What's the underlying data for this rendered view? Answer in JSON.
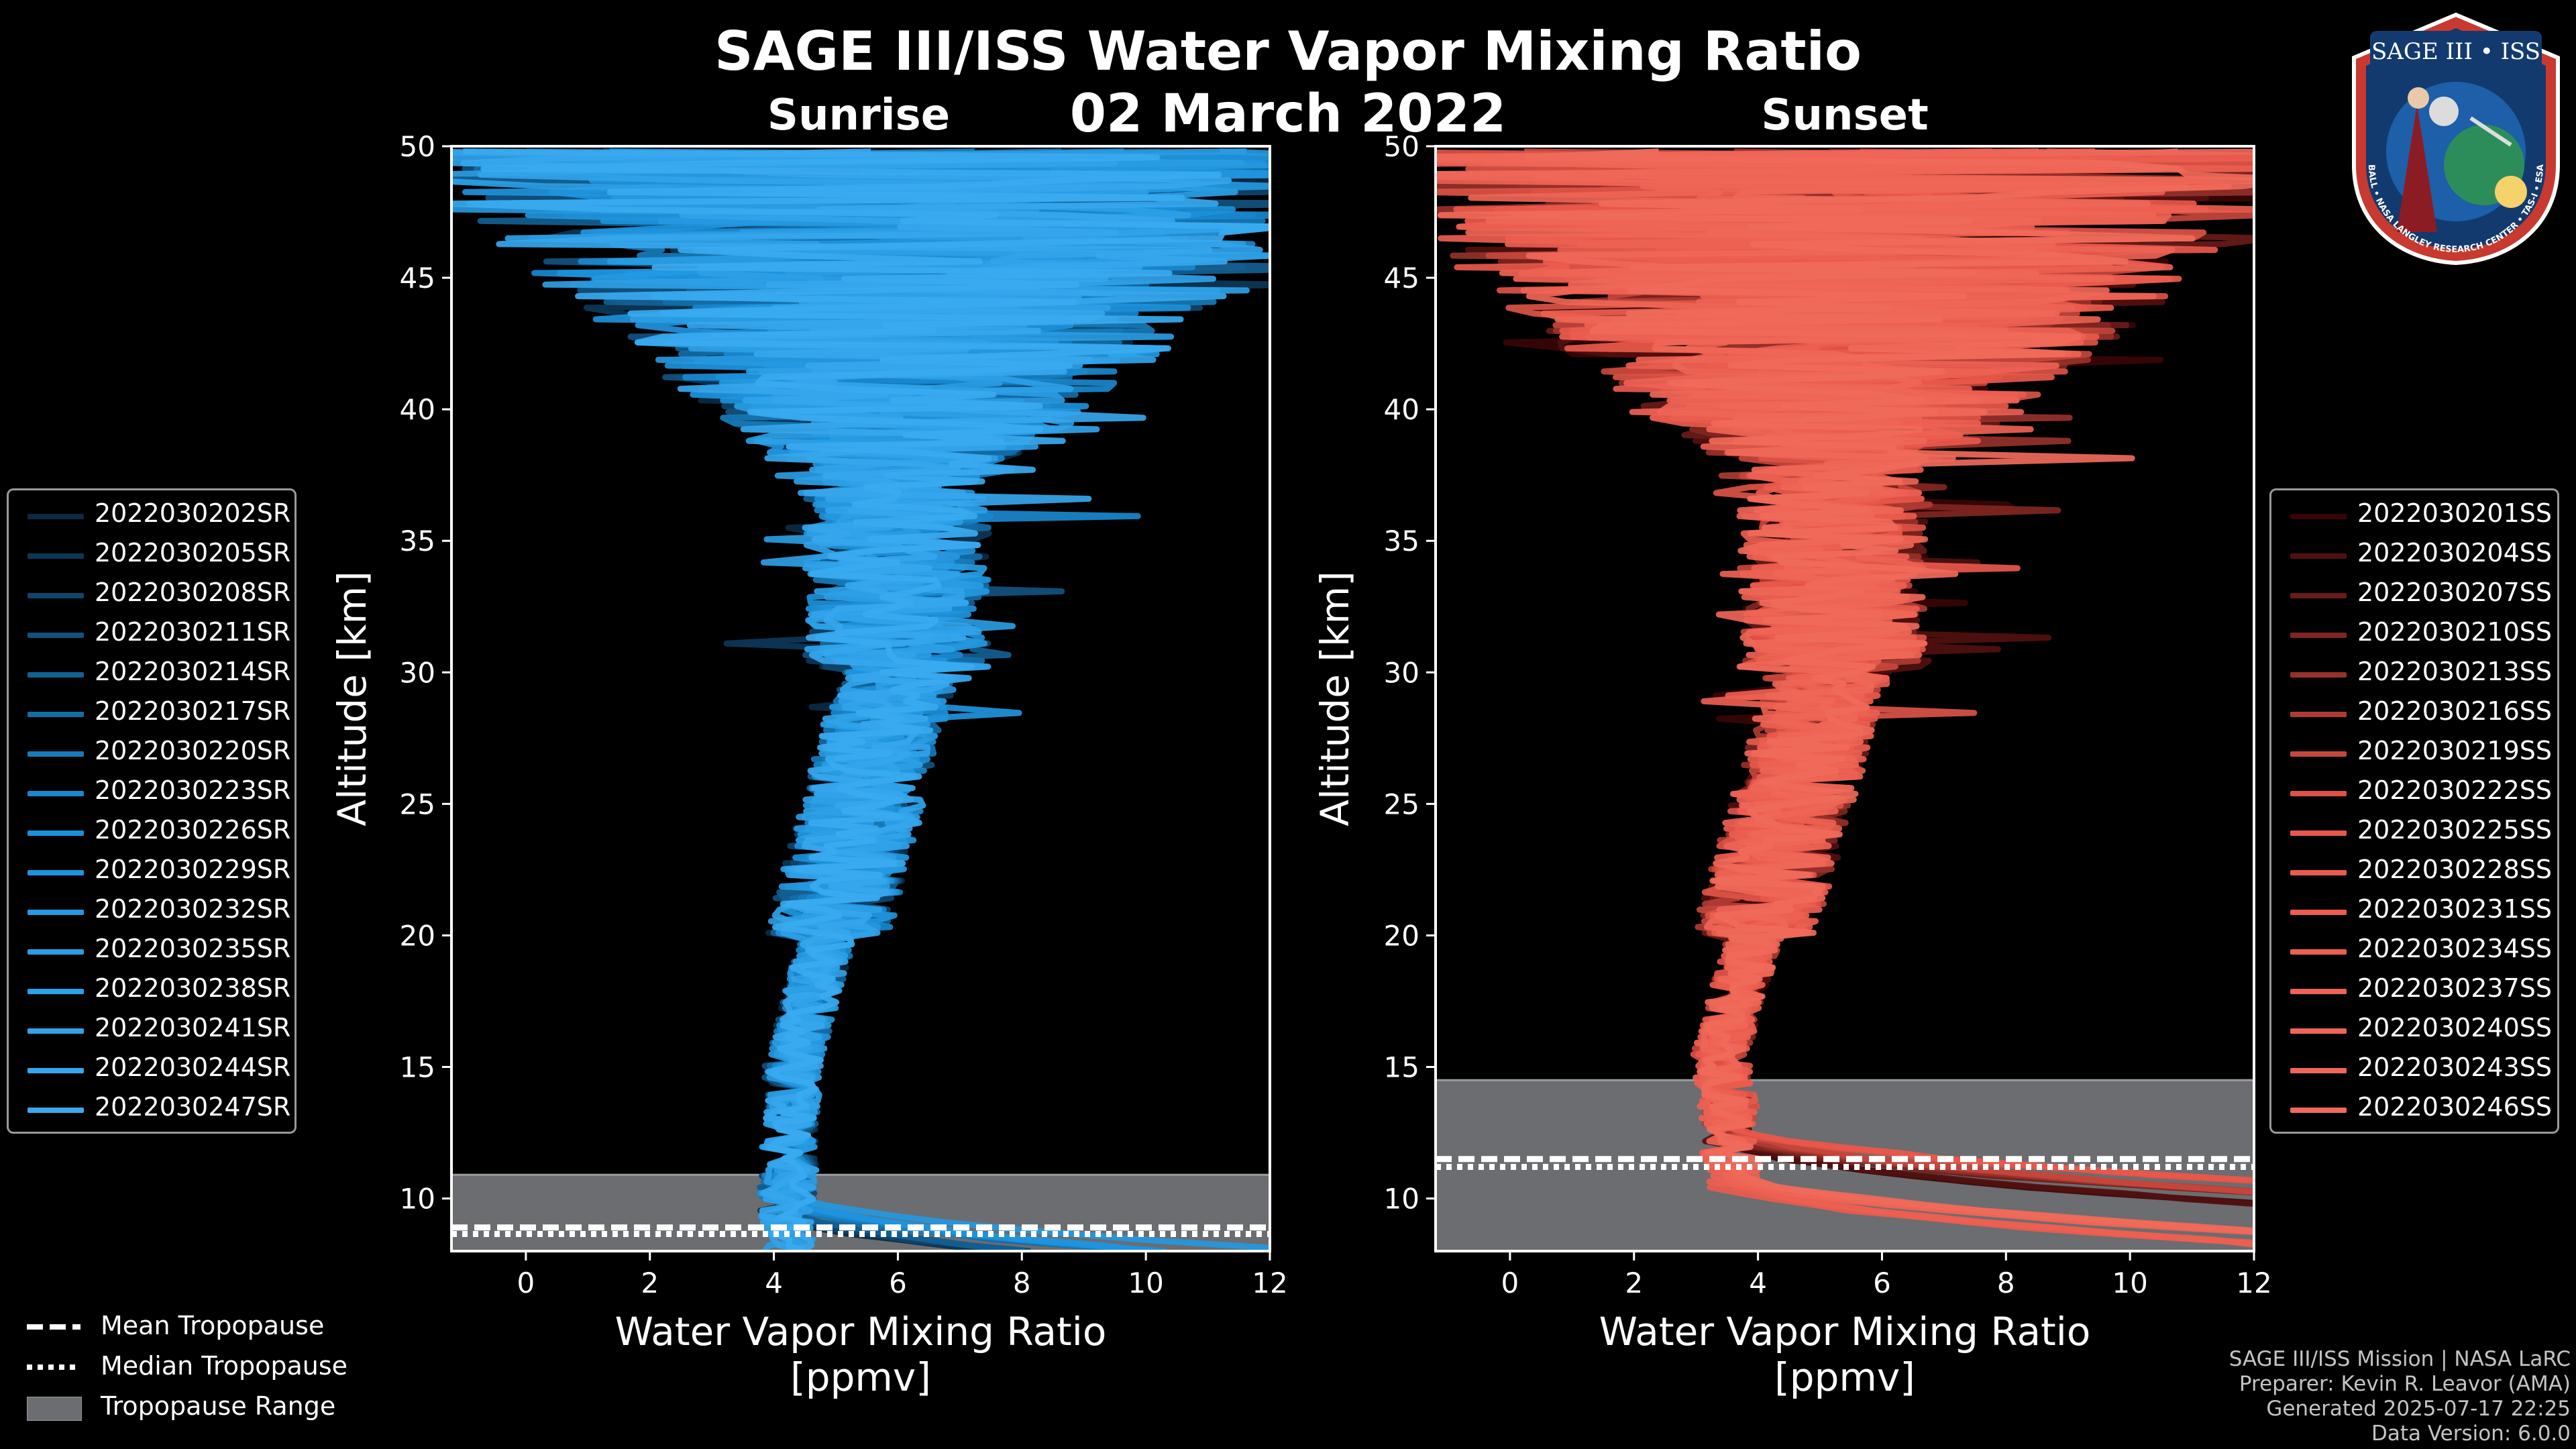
{
  "header": {
    "title": "SAGE III/ISS Water Vapor Mixing Ratio",
    "date": "02 March 2022",
    "sunrise_title": "Sunrise",
    "sunset_title": "Sunset"
  },
  "colors": {
    "background": "#000000",
    "sunrise": "#1a8fd8",
    "sunset": "#e8574a",
    "tropopause_range": "#6b6d70"
  },
  "chart_data": [
    {
      "type": "line",
      "panel": "sunrise",
      "title": "Sunrise",
      "xlabel": "Water Vapor Mixing Ratio\n[ppmv]",
      "xlabel_lines": [
        "Water Vapor Mixing Ratio",
        "[ppmv]"
      ],
      "ylabel": "Altitude [km]",
      "xlim": [
        -1.2,
        12
      ],
      "ylim": [
        8,
        50
      ],
      "xticks": [
        0,
        2,
        4,
        6,
        8,
        10,
        12
      ],
      "yticks": [
        10,
        15,
        20,
        25,
        30,
        35,
        40,
        45,
        50
      ],
      "legend_position": "outside-left",
      "tropopause": {
        "range_bottom": 8,
        "range_top": 10.9,
        "mean": 8.9,
        "median": 8.65
      },
      "profile_shape": {
        "near_tropopause_ppmv": 4.2,
        "minimum_ppmv": 4.3,
        "minimum_altitude_km": 15,
        "upper_ppmv": 6.0,
        "surface_ppmv": 11.0
      },
      "series": [
        {
          "name": "2022030202SR"
        },
        {
          "name": "2022030205SR"
        },
        {
          "name": "2022030208SR"
        },
        {
          "name": "2022030211SR"
        },
        {
          "name": "2022030214SR"
        },
        {
          "name": "2022030217SR"
        },
        {
          "name": "2022030220SR"
        },
        {
          "name": "2022030223SR"
        },
        {
          "name": "2022030226SR"
        },
        {
          "name": "2022030229SR"
        },
        {
          "name": "2022030232SR"
        },
        {
          "name": "2022030235SR"
        },
        {
          "name": "2022030238SR"
        },
        {
          "name": "2022030241SR"
        },
        {
          "name": "2022030244SR"
        },
        {
          "name": "2022030247SR"
        }
      ]
    },
    {
      "type": "line",
      "panel": "sunset",
      "title": "Sunset",
      "xlabel": "Water Vapor Mixing Ratio\n[ppmv]",
      "xlabel_lines": [
        "Water Vapor Mixing Ratio",
        "[ppmv]"
      ],
      "ylabel": "Altitude [km]",
      "xlim": [
        -1.2,
        12
      ],
      "ylim": [
        8,
        50
      ],
      "xticks": [
        0,
        2,
        4,
        6,
        8,
        10,
        12
      ],
      "yticks": [
        10,
        15,
        20,
        25,
        30,
        35,
        40,
        45,
        50
      ],
      "legend_position": "outside-right",
      "tropopause": {
        "range_bottom": 8,
        "range_top": 14.5,
        "mean": 11.5,
        "median": 11.2
      },
      "profile_shape": {
        "near_tropopause_ppmv": 3.6,
        "minimum_ppmv": 3.4,
        "minimum_altitude_km": 15.5,
        "upper_ppmv": 5.2,
        "surface_ppmv": 12.0
      },
      "series": [
        {
          "name": "2022030201SS"
        },
        {
          "name": "2022030204SS"
        },
        {
          "name": "2022030207SS"
        },
        {
          "name": "2022030210SS"
        },
        {
          "name": "2022030213SS"
        },
        {
          "name": "2022030216SS"
        },
        {
          "name": "2022030219SS"
        },
        {
          "name": "2022030222SS"
        },
        {
          "name": "2022030225SS"
        },
        {
          "name": "2022030228SS"
        },
        {
          "name": "2022030231SS"
        },
        {
          "name": "2022030234SS"
        },
        {
          "name": "2022030237SS"
        },
        {
          "name": "2022030240SS"
        },
        {
          "name": "2022030243SS"
        },
        {
          "name": "2022030246SS"
        }
      ]
    }
  ],
  "tropopause_legend": {
    "mean": "Mean Tropopause",
    "median": "Median Tropopause",
    "range": "Tropopause Range"
  },
  "footer": {
    "line1": "SAGE III/ISS Mission | NASA LaRC",
    "line2": "Preparer: Kevin R. Leavor (AMA)",
    "line3": "Generated 2025-07-17 22:25",
    "line4": "Data Version: 6.0.0"
  },
  "logo": {
    "title": "SAGE III • ISS",
    "ring_text": "BALL • NASA LANGLEY RESEARCH CENTER • TAS-I • ESA"
  }
}
